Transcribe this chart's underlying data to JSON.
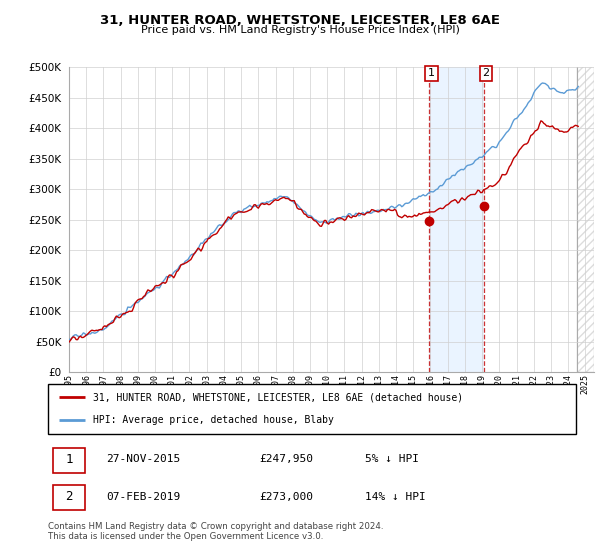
{
  "title": "31, HUNTER ROAD, WHETSTONE, LEICESTER, LE8 6AE",
  "subtitle": "Price paid vs. HM Land Registry's House Price Index (HPI)",
  "legend_line1": "31, HUNTER ROAD, WHETSTONE, LEICESTER, LE8 6AE (detached house)",
  "legend_line2": "HPI: Average price, detached house, Blaby",
  "annotation1_label": "1",
  "annotation1_date": "27-NOV-2015",
  "annotation1_price": "£247,950",
  "annotation1_hpi": "5% ↓ HPI",
  "annotation2_label": "2",
  "annotation2_date": "07-FEB-2019",
  "annotation2_price": "£273,000",
  "annotation2_hpi": "14% ↓ HPI",
  "footnote": "Contains HM Land Registry data © Crown copyright and database right 2024.\nThis data is licensed under the Open Government Licence v3.0.",
  "hpi_color": "#5b9bd5",
  "price_color": "#c00000",
  "annotation_color": "#c00000",
  "shading_color": "#ddeeff",
  "hatch_color": "#cccccc",
  "ylim": [
    0,
    500000
  ],
  "yticks": [
    0,
    50000,
    100000,
    150000,
    200000,
    250000,
    300000,
    350000,
    400000,
    450000,
    500000
  ],
  "sale1_x": 2015.917,
  "sale1_y": 247950,
  "sale2_x": 2019.083,
  "sale2_y": 273000,
  "shade_x1": 2015.917,
  "shade_x2": 2019.083,
  "data_end_x": 2024.5,
  "xlim_start": 1995,
  "xlim_end": 2025.5
}
